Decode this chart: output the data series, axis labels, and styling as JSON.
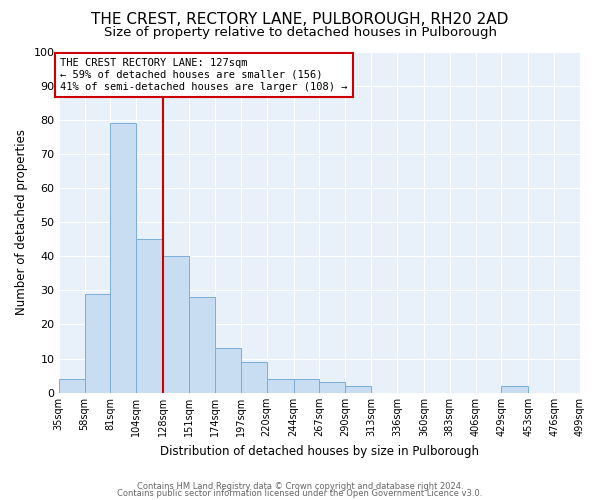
{
  "title": "THE CREST, RECTORY LANE, PULBOROUGH, RH20 2AD",
  "subtitle": "Size of property relative to detached houses in Pulborough",
  "xlabel": "Distribution of detached houses by size in Pulborough",
  "ylabel": "Number of detached properties",
  "bar_values": [
    4,
    29,
    79,
    45,
    40,
    28,
    13,
    9,
    4,
    4,
    3,
    2,
    0,
    0,
    0,
    0,
    0,
    2,
    0,
    0
  ],
  "bin_edges": [
    35,
    58,
    81,
    104,
    128,
    151,
    174,
    197,
    220,
    244,
    267,
    290,
    313,
    336,
    360,
    383,
    406,
    429,
    453,
    476,
    499
  ],
  "tick_labels": [
    "35sqm",
    "58sqm",
    "81sqm",
    "104sqm",
    "128sqm",
    "151sqm",
    "174sqm",
    "197sqm",
    "220sqm",
    "244sqm",
    "267sqm",
    "290sqm",
    "313sqm",
    "336sqm",
    "360sqm",
    "383sqm",
    "406sqm",
    "429sqm",
    "453sqm",
    "476sqm",
    "499sqm"
  ],
  "bar_color": "#c9ddf2",
  "bar_edge_color": "#7aaed6",
  "vline_x": 128,
  "vline_color": "#cc0000",
  "ylim": [
    0,
    100
  ],
  "yticks": [
    0,
    10,
    20,
    30,
    40,
    50,
    60,
    70,
    80,
    90,
    100
  ],
  "annotation_text": "THE CREST RECTORY LANE: 127sqm\n← 59% of detached houses are smaller (156)\n41% of semi-detached houses are larger (108) →",
  "annotation_box_color": "#ffffff",
  "annotation_box_edge": "#cc0000",
  "footer_line1": "Contains HM Land Registry data © Crown copyright and database right 2024.",
  "footer_line2": "Contains public sector information licensed under the Open Government Licence v3.0.",
  "bg_color": "#e8f0fa",
  "title_fontsize": 11,
  "subtitle_fontsize": 9.5,
  "grid_color": "#ffffff"
}
